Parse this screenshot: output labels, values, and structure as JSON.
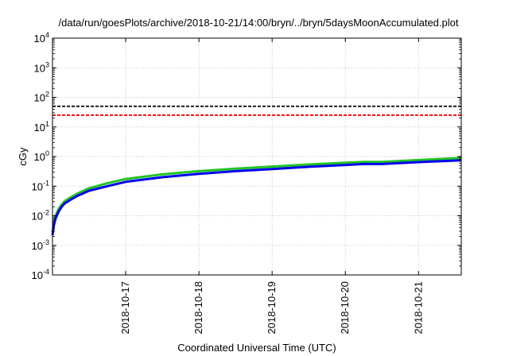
{
  "chart_data": {
    "type": "line",
    "title": "/data/run/goesPlots/archive/2018-10-21/14:00/bryn/../bryn/5daysMoonAccumulated.plot",
    "xlabel": "Coordinated Universal Time (UTC)",
    "ylabel": "cGy",
    "y_scale": "log",
    "ylim": [
      0.0001,
      10000
    ],
    "xlim": [
      "2018-10-16T00:00",
      "2018-10-21T14:00"
    ],
    "grid": true,
    "y_ticks": [
      {
        "base": "10",
        "exp": "-4",
        "value": 0.0001
      },
      {
        "base": "10",
        "exp": "-3",
        "value": 0.001
      },
      {
        "base": "10",
        "exp": "-2",
        "value": 0.01
      },
      {
        "base": "10",
        "exp": "-1",
        "value": 0.1
      },
      {
        "base": "10",
        "exp": "0",
        "value": 1
      },
      {
        "base": "10",
        "exp": "1",
        "value": 10
      },
      {
        "base": "10",
        "exp": "2",
        "value": 100
      },
      {
        "base": "10",
        "exp": "3",
        "value": 1000
      },
      {
        "base": "10",
        "exp": "4",
        "value": 10000
      }
    ],
    "x_ticks": [
      {
        "label": "2018-10-17",
        "value": "2018-10-17T00:00"
      },
      {
        "label": "2018-10-18",
        "value": "2018-10-18T00:00"
      },
      {
        "label": "2018-10-19",
        "value": "2018-10-19T00:00"
      },
      {
        "label": "2018-10-20",
        "value": "2018-10-20T00:00"
      },
      {
        "label": "2018-10-21",
        "value": "2018-10-21T00:00"
      }
    ],
    "reference_lines": [
      {
        "value": 50,
        "color": "#000000",
        "style": "dashed"
      },
      {
        "value": 25,
        "color": "#ff0000",
        "style": "dashed"
      }
    ],
    "series": [
      {
        "color": "#22c422",
        "x": [
          "2018-10-16T00:00",
          "2018-10-16T00:30",
          "2018-10-16T01:00",
          "2018-10-16T02:00",
          "2018-10-16T03:00",
          "2018-10-16T04:00",
          "2018-10-16T06:00",
          "2018-10-16T08:00",
          "2018-10-16T12:00",
          "2018-10-16T18:00",
          "2018-10-17T00:00",
          "2018-10-17T12:00",
          "2018-10-18T00:00",
          "2018-10-18T12:00",
          "2018-10-19T00:00",
          "2018-10-19T12:00",
          "2018-10-20T00:00",
          "2018-10-20T06:00",
          "2018-10-20T12:00",
          "2018-10-21T00:00",
          "2018-10-21T14:00"
        ],
        "values": [
          0.0028,
          0.006,
          0.01,
          0.017,
          0.024,
          0.031,
          0.042,
          0.055,
          0.085,
          0.125,
          0.175,
          0.25,
          0.32,
          0.39,
          0.46,
          0.54,
          0.62,
          0.66,
          0.66,
          0.76,
          0.9
        ]
      },
      {
        "color": "#0000ee",
        "x": [
          "2018-10-16T00:00",
          "2018-10-16T00:30",
          "2018-10-16T01:00",
          "2018-10-16T02:00",
          "2018-10-16T03:00",
          "2018-10-16T04:00",
          "2018-10-16T06:00",
          "2018-10-16T08:00",
          "2018-10-16T12:00",
          "2018-10-16T18:00",
          "2018-10-17T00:00",
          "2018-10-17T12:00",
          "2018-10-18T00:00",
          "2018-10-18T12:00",
          "2018-10-19T00:00",
          "2018-10-19T12:00",
          "2018-10-20T00:00",
          "2018-10-20T06:00",
          "2018-10-20T12:00",
          "2018-10-21T00:00",
          "2018-10-21T14:00"
        ],
        "values": [
          0.0022,
          0.005,
          0.008,
          0.014,
          0.02,
          0.026,
          0.035,
          0.046,
          0.07,
          0.1,
          0.14,
          0.2,
          0.26,
          0.32,
          0.38,
          0.45,
          0.52,
          0.56,
          0.56,
          0.65,
          0.75
        ]
      }
    ]
  }
}
